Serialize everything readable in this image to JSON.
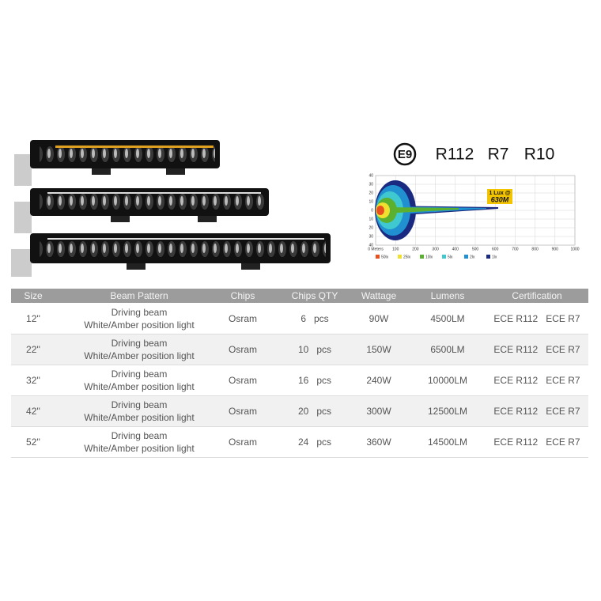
{
  "certifications": {
    "e_mark": "E9",
    "marks": [
      "R112",
      "R7",
      "R10"
    ]
  },
  "beam_diagram": {
    "callout": [
      "1 Lux @",
      "630M"
    ],
    "y_ticks": [
      "40",
      "30",
      "20",
      "10",
      "0",
      "10",
      "20",
      "30",
      "40"
    ],
    "x_ticks": [
      "0 Meters",
      "100",
      "200",
      "300",
      "400",
      "500",
      "600",
      "700",
      "800",
      "900",
      "1000"
    ],
    "legend": [
      "50lx",
      "25lx",
      "10lx",
      "5lx",
      "2lx",
      "1lx"
    ]
  },
  "table": {
    "header": [
      "Size",
      "Beam Pattern",
      "Chips",
      "Chips  QTY",
      "Wattage",
      "Lumens",
      "Certification"
    ],
    "rows": [
      [
        "12''",
        [
          "Driving beam",
          "White/Amber position light"
        ],
        "Osram",
        "6   pcs",
        "90W",
        "4500LM",
        "ECE R112   ECE R7"
      ],
      [
        "22''",
        [
          "Driving beam",
          "White/Amber position light"
        ],
        "Osram",
        "10   pcs",
        "150W",
        "6500LM",
        "ECE R112   ECE R7"
      ],
      [
        "32''",
        [
          "Driving beam",
          "White/Amber position light"
        ],
        "Osram",
        "16   pcs",
        "240W",
        "10000LM",
        "ECE R112   ECE R7"
      ],
      [
        "42''",
        [
          "Driving beam",
          "White/Amber position light"
        ],
        "Osram",
        "20   pcs",
        "300W",
        "12500LM",
        "ECE R112   ECE R7"
      ],
      [
        "52''",
        [
          "Driving beam",
          "White/Amber position light"
        ],
        "Osram",
        "24   pcs",
        "360W",
        "14500LM",
        "ECE R112   ECE R7"
      ]
    ]
  }
}
